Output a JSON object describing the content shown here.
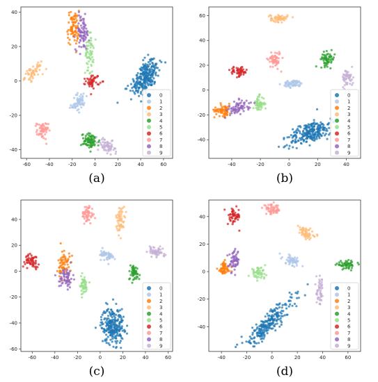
{
  "legend_colors": [
    "#1f77b4",
    "#aec7e8",
    "#ff7f0e",
    "#ffbb78",
    "#2ca02c",
    "#98df8a",
    "#d62728",
    "#ff9896",
    "#9467bd",
    "#c5b0d5"
  ],
  "chart_data": [
    {
      "type": "scatter",
      "caption": "(a)",
      "xlim": [
        -65,
        68
      ],
      "ylim": [
        -45,
        43
      ],
      "xticks": [
        -60,
        -40,
        -20,
        0,
        20,
        40,
        60
      ],
      "yticks": [
        -40,
        -20,
        0,
        20,
        40
      ],
      "legend_labels": [
        "0",
        "1",
        "2",
        "3",
        "4",
        "5",
        "6",
        "7",
        "8",
        "9"
      ],
      "legend_position": "bottom-right",
      "clusters": [
        {
          "label": "0",
          "cx": 44,
          "cy": 2,
          "sx": 7,
          "sy": 4,
          "angle": 35,
          "n": 260
        },
        {
          "label": "1",
          "cx": -14,
          "cy": -12,
          "sx": 3.5,
          "sy": 2.5,
          "angle": 25,
          "n": 60
        },
        {
          "label": "2",
          "cx": -19,
          "cy": 31,
          "sx": 2.5,
          "sy": 5,
          "angle": 0,
          "n": 80
        },
        {
          "label": "3",
          "cx": -54,
          "cy": 5,
          "sx": 4,
          "sy": 1.8,
          "angle": 20,
          "n": 55
        },
        {
          "label": "4",
          "cx": -4,
          "cy": -35,
          "sx": 4,
          "sy": 2.2,
          "angle": 0,
          "n": 80
        },
        {
          "label": "5",
          "cx": -5,
          "cy": 16,
          "sx": 1.8,
          "sy": 6,
          "angle": 0,
          "n": 60
        },
        {
          "label": "6",
          "cx": -2,
          "cy": 0,
          "sx": 3,
          "sy": 2,
          "angle": 0,
          "n": 50
        },
        {
          "label": "7",
          "cx": -46,
          "cy": -29,
          "sx": 2.5,
          "sy": 2.5,
          "angle": 0,
          "n": 55
        },
        {
          "label": "8",
          "cx": -11,
          "cy": 28,
          "sx": 3,
          "sy": 5,
          "angle": 0,
          "n": 80
        },
        {
          "label": "9",
          "cx": 10,
          "cy": -38,
          "sx": 4,
          "sy": 2,
          "angle": -20,
          "n": 60
        }
      ]
    },
    {
      "type": "scatter",
      "caption": "(b)",
      "xlim": [
        -56,
        50
      ],
      "ylim": [
        -55,
        67
      ],
      "xticks": [
        -40,
        -20,
        0,
        20,
        40
      ],
      "yticks": [
        -40,
        -20,
        0,
        20,
        40,
        60
      ],
      "legend_labels": [
        "0",
        "1",
        "2",
        "3",
        "4",
        "5",
        "6",
        "7",
        "8",
        "9"
      ],
      "legend_position": "bottom-right",
      "clusters": [
        {
          "label": "0",
          "cx": 15,
          "cy": -34,
          "sx": 8,
          "sy": 4,
          "angle": 30,
          "n": 240
        },
        {
          "label": "1",
          "cx": 3,
          "cy": 5,
          "sx": 3.5,
          "sy": 1.5,
          "angle": 0,
          "n": 60
        },
        {
          "label": "2",
          "cx": -46,
          "cy": -16,
          "sx": 3,
          "sy": 2.5,
          "angle": 0,
          "n": 70
        },
        {
          "label": "3",
          "cx": -7,
          "cy": 58,
          "sx": 3,
          "sy": 1.5,
          "angle": 0,
          "n": 55
        },
        {
          "label": "4",
          "cx": 27,
          "cy": 25,
          "sx": 2.5,
          "sy": 2.8,
          "angle": 0,
          "n": 60
        },
        {
          "label": "5",
          "cx": -21,
          "cy": -11,
          "sx": 2,
          "sy": 3,
          "angle": 0,
          "n": 55
        },
        {
          "label": "6",
          "cx": -35,
          "cy": 15,
          "sx": 3,
          "sy": 2,
          "angle": 0,
          "n": 55
        },
        {
          "label": "7",
          "cx": -10,
          "cy": 25,
          "sx": 2.2,
          "sy": 3.5,
          "angle": 0,
          "n": 55
        },
        {
          "label": "8",
          "cx": -35,
          "cy": -14,
          "sx": 4,
          "sy": 2.5,
          "angle": 20,
          "n": 70
        },
        {
          "label": "9",
          "cx": 41,
          "cy": 10,
          "sx": 2,
          "sy": 3.5,
          "angle": 0,
          "n": 55
        }
      ]
    },
    {
      "type": "scatter",
      "caption": "(c)",
      "xlim": [
        -70,
        64
      ],
      "ylim": [
        -62,
        55
      ],
      "xticks": [
        -60,
        -40,
        -20,
        0,
        20,
        40,
        60
      ],
      "yticks": [
        -60,
        -40,
        -20,
        0,
        20,
        40
      ],
      "legend_labels": [
        "0",
        "1",
        "2",
        "3",
        "4",
        "5",
        "6",
        "7",
        "8",
        "9"
      ],
      "legend_position": "bottom-right",
      "clusters": [
        {
          "label": "0",
          "cx": 11,
          "cy": -42,
          "sx": 5,
          "sy": 7,
          "angle": 0,
          "n": 240
        },
        {
          "label": "1",
          "cx": 6,
          "cy": 12,
          "sx": 3,
          "sy": 2,
          "angle": -25,
          "n": 55
        },
        {
          "label": "2",
          "cx": -32,
          "cy": 5,
          "sx": 2.5,
          "sy": 6,
          "angle": 0,
          "n": 70
        },
        {
          "label": "3",
          "cx": 18,
          "cy": 40,
          "sx": 2,
          "sy": 5,
          "angle": 0,
          "n": 55
        },
        {
          "label": "4",
          "cx": 30,
          "cy": -1,
          "sx": 2.5,
          "sy": 3,
          "angle": 0,
          "n": 50
        },
        {
          "label": "5",
          "cx": -15,
          "cy": -11,
          "sx": 2,
          "sy": 4,
          "angle": 0,
          "n": 50
        },
        {
          "label": "6",
          "cx": -60,
          "cy": 8,
          "sx": 3,
          "sy": 2.5,
          "angle": 0,
          "n": 55
        },
        {
          "label": "7",
          "cx": -11,
          "cy": 44,
          "sx": 2.5,
          "sy": 3.5,
          "angle": 0,
          "n": 55
        },
        {
          "label": "8",
          "cx": -30,
          "cy": -5,
          "sx": 3,
          "sy": 4,
          "angle": 0,
          "n": 65
        },
        {
          "label": "9",
          "cx": 49,
          "cy": 15,
          "sx": 4,
          "sy": 1.8,
          "angle": -15,
          "n": 55
        }
      ]
    },
    {
      "type": "scatter",
      "caption": "(d)",
      "xlim": [
        -50,
        70
      ],
      "ylim": [
        -58,
        52
      ],
      "xticks": [
        -40,
        -20,
        0,
        20,
        40,
        60
      ],
      "yticks": [
        -40,
        -20,
        0,
        20,
        40
      ],
      "legend_labels": [
        "0",
        "1",
        "2",
        "3",
        "4",
        "5",
        "6",
        "7",
        "8",
        "9"
      ],
      "legend_position": "bottom-right",
      "clusters": [
        {
          "label": "0",
          "cx": -3,
          "cy": -38,
          "sx": 14,
          "sy": 3,
          "angle": 42,
          "n": 240
        },
        {
          "label": "1",
          "cx": 16,
          "cy": 8,
          "sx": 4,
          "sy": 1.8,
          "angle": -20,
          "n": 55
        },
        {
          "label": "2",
          "cx": -38,
          "cy": 2,
          "sx": 2.5,
          "sy": 2.5,
          "angle": 0,
          "n": 60
        },
        {
          "label": "3",
          "cx": 27,
          "cy": 28,
          "sx": 4,
          "sy": 1.8,
          "angle": -35,
          "n": 55
        },
        {
          "label": "4",
          "cx": 59,
          "cy": 5,
          "sx": 4,
          "sy": 1.3,
          "angle": 0,
          "n": 55
        },
        {
          "label": "5",
          "cx": -11,
          "cy": -1,
          "sx": 3,
          "sy": 2,
          "angle": 0,
          "n": 50
        },
        {
          "label": "6",
          "cx": -30,
          "cy": 40,
          "sx": 2.5,
          "sy": 3,
          "angle": 0,
          "n": 55
        },
        {
          "label": "7",
          "cx": 0,
          "cy": 45,
          "sx": 3.5,
          "sy": 1.8,
          "angle": 0,
          "n": 55
        },
        {
          "label": "8",
          "cx": -30,
          "cy": 8,
          "sx": 2,
          "sy": 4,
          "angle": 0,
          "n": 60
        },
        {
          "label": "9",
          "cx": 38,
          "cy": -15,
          "sx": 1.5,
          "sy": 5,
          "angle": 0,
          "n": 50
        }
      ]
    }
  ]
}
